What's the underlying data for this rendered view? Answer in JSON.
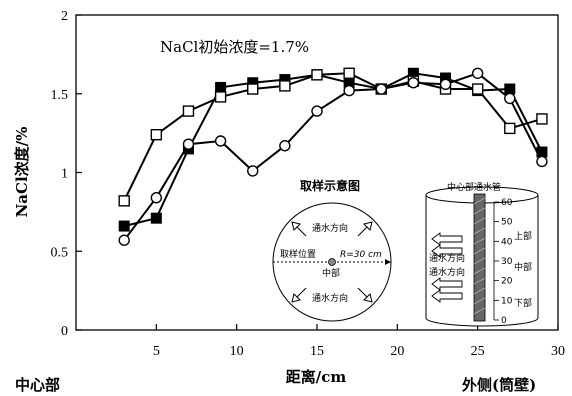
{
  "chart_data": {
    "type": "line",
    "title": "NaCl初始浓度=1.7%",
    "xlabel": "距离/cm",
    "ylabel": "NaCl浓度/%",
    "xlim": [
      0,
      30
    ],
    "ylim": [
      0,
      2
    ],
    "xticks": [
      5,
      10,
      15,
      20,
      25,
      30
    ],
    "xtick_labels": [
      "5",
      "10",
      "15",
      "20",
      "25",
      "30"
    ],
    "yticks": [
      0,
      0.5,
      1,
      1.5,
      2
    ],
    "ytick_labels": [
      "0",
      "0.5",
      "1",
      "1.5",
      "2"
    ],
    "grid": false,
    "series": [
      {
        "marker": "filled-square",
        "x": [
          3,
          5,
          7,
          9,
          11,
          13,
          15,
          17,
          19,
          21,
          23,
          25,
          27,
          29
        ],
        "values": [
          0.66,
          0.71,
          1.15,
          1.54,
          1.57,
          1.59,
          1.62,
          1.57,
          1.53,
          1.63,
          1.6,
          1.52,
          1.53,
          1.13
        ]
      },
      {
        "marker": "open-square",
        "x": [
          3,
          5,
          7,
          9,
          11,
          13,
          15,
          17,
          19,
          21,
          23,
          25,
          27,
          29
        ],
        "values": [
          0.82,
          1.24,
          1.39,
          1.48,
          1.53,
          1.55,
          1.62,
          1.63,
          1.53,
          1.58,
          1.53,
          1.53,
          1.28,
          1.34
        ]
      },
      {
        "marker": "open-circle",
        "x": [
          3,
          5,
          7,
          9,
          11,
          13,
          15,
          17,
          19,
          21,
          23,
          25,
          27,
          29
        ],
        "values": [
          0.57,
          0.84,
          1.18,
          1.2,
          1.01,
          1.17,
          1.39,
          1.52,
          1.53,
          1.57,
          1.56,
          1.63,
          1.47,
          1.07
        ]
      }
    ]
  },
  "labels": {
    "left_bottom": "中心部",
    "right_bottom": "外侧(筒壁)"
  },
  "inset": {
    "title": "取样示意图",
    "circle": {
      "flow_top": "通水方向",
      "flow_bottom": "通水方向",
      "sample_pos": "取样位置",
      "radius": "R=30 cm",
      "center": "中部"
    },
    "cylinder": {
      "pipe_label": "中心部通水管",
      "flow_upper": "通水方向",
      "flow_lower": "通水方向",
      "ruler_ticks": [
        "60",
        "50",
        "40",
        "30",
        "20",
        "10",
        "0"
      ],
      "level_top": "上部",
      "level_mid": "中部",
      "level_bottom": "下部"
    }
  }
}
